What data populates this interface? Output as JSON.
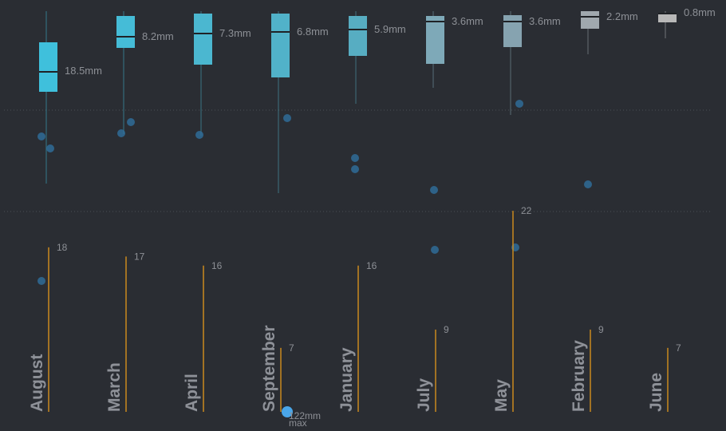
{
  "chart_data": {
    "type": "box",
    "title": "",
    "xlabel": "",
    "ylabel": "",
    "unit": "mm",
    "categories": [
      "August",
      "March",
      "April",
      "September",
      "January",
      "July",
      "May",
      "February",
      "June"
    ],
    "median_labels": [
      "18.5mm",
      "8.2mm",
      "7.3mm",
      "6.8mm",
      "5.9mm",
      "3.6mm",
      "3.6mm",
      "2.2mm",
      "0.8mm"
    ],
    "counts": [
      18,
      17,
      16,
      7,
      16,
      9,
      22,
      9,
      7
    ],
    "max_value_label": "122mm",
    "max_label": "max",
    "colors": {
      "background": "#2a2d33",
      "grid": "#4a4e55",
      "count_line": "#c98a1e",
      "outlier": "#2f6f9e",
      "max_point": "#4aa6e8",
      "box_scale": [
        "#3fc0dc",
        "#45bcd7",
        "#4bb7d0",
        "#51b2c9",
        "#57adc2",
        "#7ea9b8",
        "#86a3b0",
        "#a0a8ae",
        "#b8b8b8"
      ]
    }
  }
}
